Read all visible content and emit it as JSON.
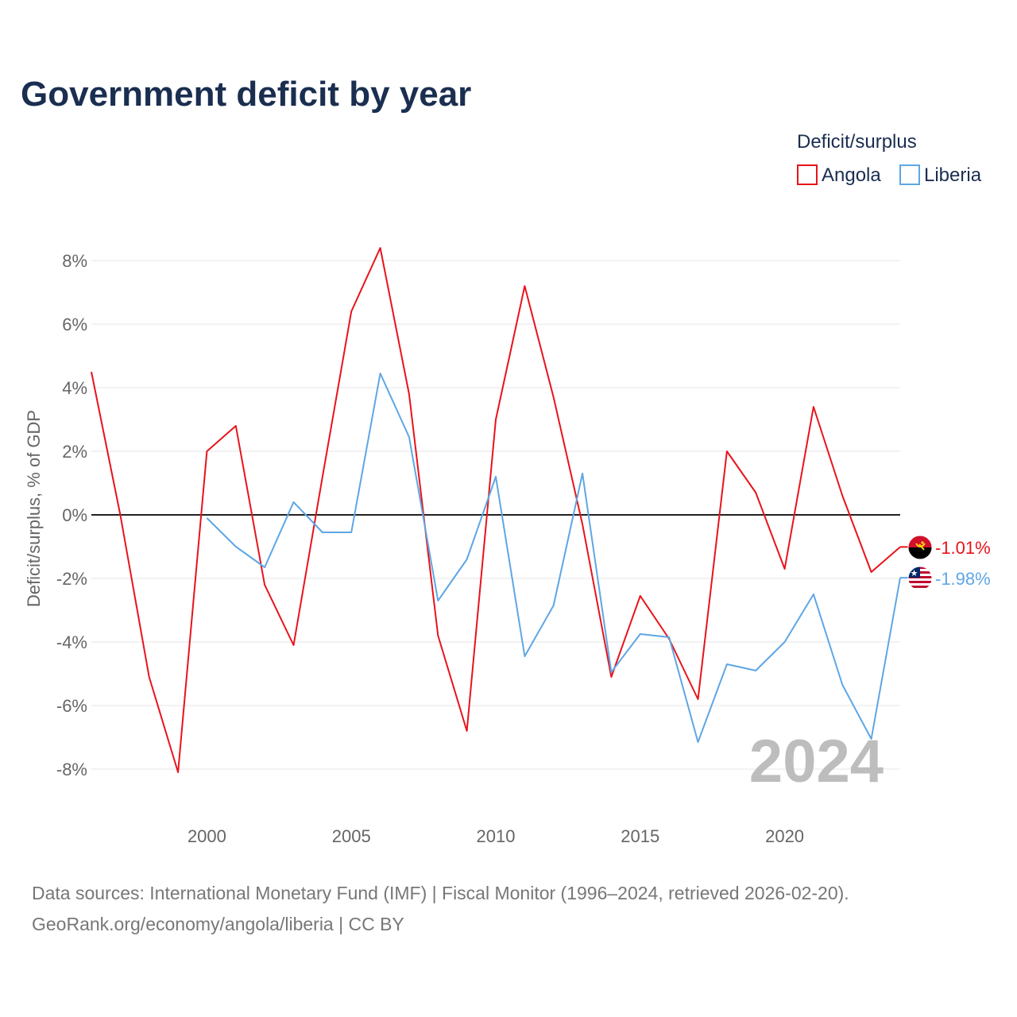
{
  "title": "Government deficit by year",
  "legend": {
    "title": "Deficit/surplus",
    "items": [
      {
        "label": "Angola",
        "color": "#e8131b"
      },
      {
        "label": "Liberia",
        "color": "#5ea6e5"
      }
    ]
  },
  "watermark_year": "2024",
  "footer": {
    "line1": "Data sources: International Monetary Fund (IMF) | Fiscal Monitor (1996–2024, retrieved 2026-02-20).",
    "line2": "GeoRank.org/economy/angola/liberia | CC BY"
  },
  "chart_data": {
    "type": "line",
    "title": "Government deficit by year",
    "xlabel": "",
    "ylabel": "Deficit/surplus, % of GDP",
    "xlim": [
      1996,
      2024
    ],
    "ylim": [
      -9,
      9
    ],
    "xticks": [
      2000,
      2005,
      2010,
      2015,
      2020
    ],
    "yticks": [
      8,
      6,
      4,
      2,
      0,
      -2,
      -4,
      -6,
      -8
    ],
    "ytick_labels": [
      "8%",
      "6%",
      "4%",
      "2%",
      "0%",
      "-2%",
      "-4%",
      "-6%",
      "-8%"
    ],
    "grid": true,
    "legend_position": "top-right",
    "series": [
      {
        "name": "Angola",
        "color": "#e8131b",
        "end_label": "-1.01%",
        "x": [
          1996,
          1997,
          1998,
          1999,
          2000,
          2001,
          2002,
          2003,
          2004,
          2005,
          2006,
          2007,
          2008,
          2009,
          2010,
          2011,
          2012,
          2013,
          2014,
          2015,
          2016,
          2017,
          2018,
          2019,
          2020,
          2021,
          2022,
          2023,
          2024
        ],
        "values": [
          4.5,
          0.0,
          -5.1,
          -8.1,
          2.0,
          2.8,
          -2.2,
          -4.1,
          1.2,
          6.4,
          8.4,
          3.8,
          -3.8,
          -6.8,
          3.0,
          7.2,
          3.7,
          -0.3,
          -5.1,
          -2.55,
          -3.9,
          -5.8,
          2.0,
          0.7,
          -1.7,
          3.4,
          0.6,
          -1.8,
          -1.01
        ]
      },
      {
        "name": "Liberia",
        "color": "#5ea6e5",
        "end_label": "-1.98%",
        "x": [
          2000,
          2001,
          2002,
          2003,
          2004,
          2005,
          2006,
          2007,
          2008,
          2009,
          2010,
          2011,
          2012,
          2013,
          2014,
          2015,
          2016,
          2017,
          2018,
          2019,
          2020,
          2021,
          2022,
          2023,
          2024
        ],
        "values": [
          -0.1,
          -1.0,
          -1.65,
          0.4,
          -0.55,
          -0.55,
          4.45,
          2.45,
          -2.7,
          -1.4,
          1.2,
          -4.45,
          -2.85,
          1.3,
          -4.95,
          -3.75,
          -3.85,
          -7.15,
          -4.7,
          -4.9,
          -4.0,
          -2.5,
          -5.35,
          -7.05,
          -1.98
        ]
      }
    ]
  }
}
